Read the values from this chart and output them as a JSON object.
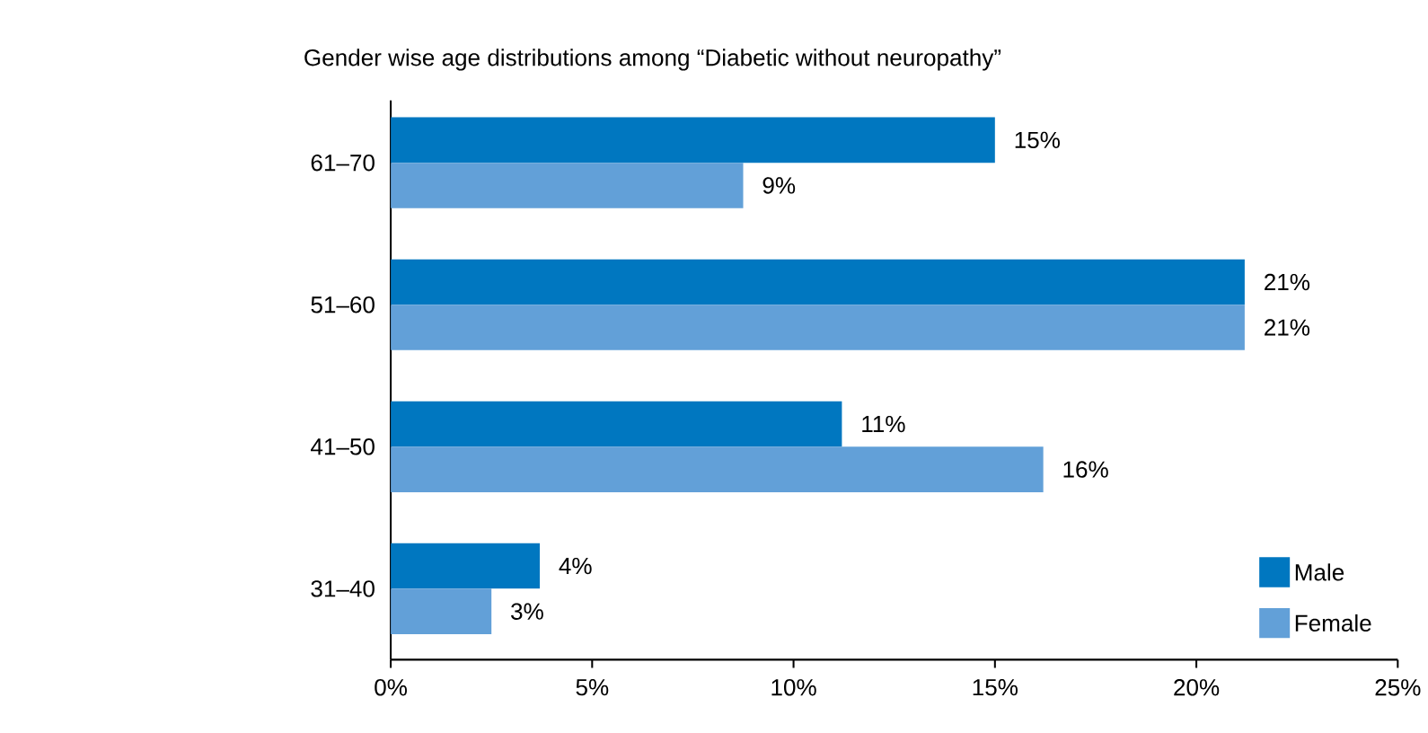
{
  "chart_data": {
    "type": "bar",
    "orientation": "horizontal",
    "title": "Gender wise age distributions among “Diabetic without neuropathy”",
    "categories": [
      "61–70",
      "51–60",
      "41–50",
      "31–40"
    ],
    "series": [
      {
        "name": "Male",
        "color": "#0077c0",
        "values": [
          15.0,
          21.2,
          11.2,
          3.7
        ],
        "value_labels": [
          "15%",
          "21%",
          "11%",
          "4%"
        ]
      },
      {
        "name": "Female",
        "color": "#62a0d8",
        "values": [
          8.75,
          21.2,
          16.2,
          2.5
        ],
        "value_labels": [
          "9%",
          "21%",
          "16%",
          "3%"
        ]
      }
    ],
    "xlim": [
      0,
      25
    ],
    "xticks": [
      {
        "value": 0,
        "label": "0%"
      },
      {
        "value": 5,
        "label": "5%"
      },
      {
        "value": 10,
        "label": "10%"
      },
      {
        "value": 15,
        "label": "15%"
      },
      {
        "value": 20,
        "label": "20%"
      },
      {
        "value": 25,
        "label": "25%"
      }
    ],
    "grid": false,
    "legend": "bottom right"
  }
}
